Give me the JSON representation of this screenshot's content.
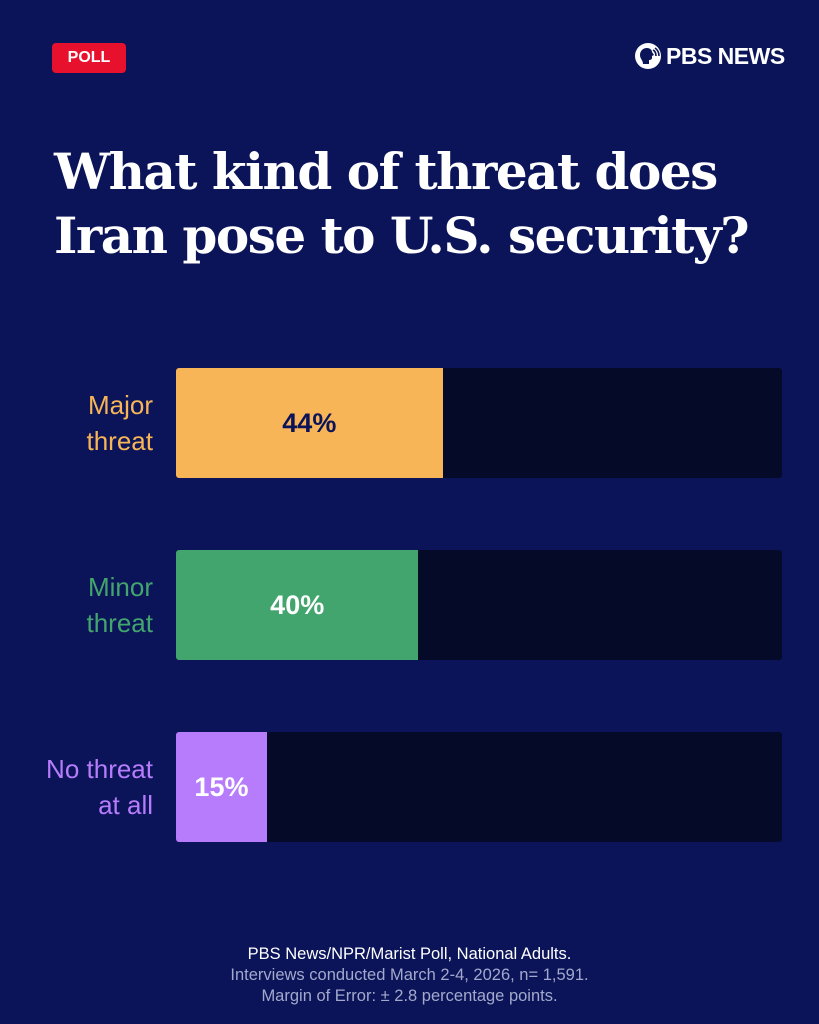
{
  "badge": "POLL",
  "logo": {
    "text": "PBS NEWS"
  },
  "title_lines": [
    "What kind of threat does",
    "Iran pose to U.S. security?"
  ],
  "chart_data": {
    "type": "bar",
    "orientation": "horizontal",
    "title": "What kind of threat does Iran pose to U.S. security?",
    "categories": [
      [
        "Major",
        "threat"
      ],
      [
        "Minor",
        "threat"
      ],
      [
        "No threat",
        "at all"
      ]
    ],
    "values": [
      44,
      40,
      15
    ],
    "data_labels": [
      "44%",
      "40%",
      "15%"
    ],
    "xlim": [
      0,
      100
    ],
    "colors": [
      "#f7b557",
      "#43a56e",
      "#b67cfb"
    ],
    "label_text_colors": [
      "#0b1458",
      "#ffffff",
      "#ffffff"
    ],
    "track_color": "#050a28",
    "grid": false
  },
  "footer": {
    "source": "PBS News/NPR/Marist Poll, National Adults.",
    "dates": "Interviews conducted March 2-4, 2026, n= 1,591.",
    "moe": "Margin of Error: ± 2.8 percentage points."
  }
}
